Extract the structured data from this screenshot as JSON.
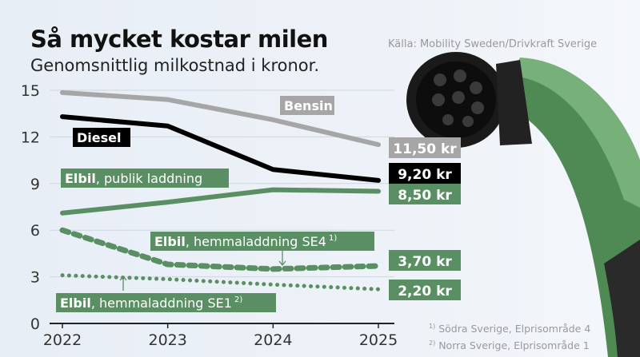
{
  "title": "Så mycket kostar milen",
  "subtitle": "Genomsnittlig milkostnad i kronor.",
  "source": "Källa: Mobility Sweden/Drivkraft Sverige",
  "footnotes": [
    "Södra Sverige, Elprisområde 4",
    "Norra Sverige, Elprisområde 1"
  ],
  "chart_data": {
    "type": "line",
    "title": "Så mycket kostar milen",
    "subtitle": "Genomsnittlig milkostnad i kronor.",
    "x": [
      "2022",
      "2023",
      "2024",
      "2025"
    ],
    "ylim": [
      0,
      15
    ],
    "yticks": [
      0,
      3,
      6,
      9,
      12,
      15
    ],
    "grid": true,
    "series": [
      {
        "name": "Bensin",
        "bold": "Bensin",
        "rest": "",
        "values": [
          14.85,
          14.4,
          13.1,
          11.5
        ],
        "end_label": "11,50 kr",
        "color": "#a6a6a6",
        "style": "solid"
      },
      {
        "name": "Diesel",
        "bold": "Diesel",
        "rest": "",
        "values": [
          13.3,
          12.7,
          9.9,
          9.2
        ],
        "end_label": "9,20 kr",
        "color": "#000000",
        "style": "solid"
      },
      {
        "name": "Elbil, publik laddning",
        "bold": "Elbil",
        "rest": ", publik laddning",
        "values": [
          7.1,
          7.8,
          8.6,
          8.5
        ],
        "end_label": "8,50 kr",
        "color": "#5a8f63",
        "style": "solid"
      },
      {
        "name": "Elbil, hemmaladdning SE4",
        "bold": "Elbil",
        "rest": ", hemmaladdning SE4",
        "note": "1)",
        "values": [
          6.0,
          3.8,
          3.5,
          3.7
        ],
        "end_label": "3,70 kr",
        "color": "#5a8f63",
        "style": "dashed"
      },
      {
        "name": "Elbil, hemmaladdning SE1",
        "bold": "Elbil",
        "rest": ", hemmaladdning SE1",
        "note": "2)",
        "values": [
          3.1,
          2.85,
          2.5,
          2.2
        ],
        "end_label": "2,20 kr",
        "color": "#5a8f63",
        "style": "dotted"
      }
    ]
  }
}
